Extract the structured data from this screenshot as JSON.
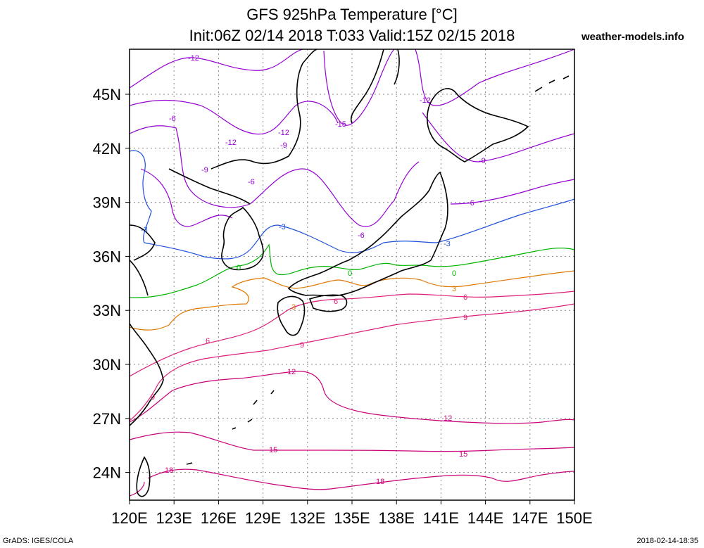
{
  "header": {
    "title_line1": "GFS 925hPa Temperature [°C]",
    "title_line2": "Init:06Z 02/14 2018 T:033 Valid:15Z 02/15 2018",
    "site": "weather-models.info"
  },
  "footer": {
    "left": "GrADS: IGES/COLA",
    "right": "2018-02-14-18:35"
  },
  "map": {
    "lat_labels": [
      "45N",
      "42N",
      "39N",
      "36N",
      "33N",
      "30N",
      "27N",
      "24N"
    ],
    "lon_labels": [
      "120E",
      "123E",
      "126E",
      "129E",
      "132E",
      "135E",
      "138E",
      "141E",
      "144E",
      "147E",
      "150E"
    ],
    "contour_labels": [
      {
        "text": "-12",
        "color": "#9400d3"
      },
      {
        "text": "-12",
        "color": "#9400d3"
      },
      {
        "text": "-12",
        "color": "#9400d3"
      },
      {
        "text": "-12",
        "color": "#9400d3"
      },
      {
        "text": "-15",
        "color": "#9400d3"
      },
      {
        "text": "-9",
        "color": "#9400d3"
      },
      {
        "text": "-9",
        "color": "#9400d3"
      },
      {
        "text": "-9",
        "color": "#9400d3"
      },
      {
        "text": "-6",
        "color": "#9400d3"
      },
      {
        "text": "-6",
        "color": "#9400d3"
      },
      {
        "text": "-6",
        "color": "#9400d3"
      },
      {
        "text": "-6",
        "color": "#9400d3"
      },
      {
        "text": "-3",
        "color": "#1e50dc"
      },
      {
        "text": "-3",
        "color": "#1e50dc"
      },
      {
        "text": "-3",
        "color": "#1e50dc"
      },
      {
        "text": "0",
        "color": "#00b400"
      },
      {
        "text": "0",
        "color": "#00b400"
      },
      {
        "text": "0",
        "color": "#00b400"
      },
      {
        "text": "3",
        "color": "#e07800"
      },
      {
        "text": "3",
        "color": "#e07800"
      },
      {
        "text": "6",
        "color": "#dc1e78"
      },
      {
        "text": "6",
        "color": "#dc1e78"
      },
      {
        "text": "6",
        "color": "#dc1e78"
      },
      {
        "text": "9",
        "color": "#dc1e78"
      },
      {
        "text": "9",
        "color": "#dc1e78"
      },
      {
        "text": "9",
        "color": "#dc1e78"
      },
      {
        "text": "12",
        "color": "#c8007a"
      },
      {
        "text": "12",
        "color": "#c8007a"
      },
      {
        "text": "15",
        "color": "#c8007a"
      },
      {
        "text": "15",
        "color": "#c8007a"
      },
      {
        "text": "18",
        "color": "#c8007a"
      },
      {
        "text": "18",
        "color": "#c8007a"
      }
    ]
  }
}
